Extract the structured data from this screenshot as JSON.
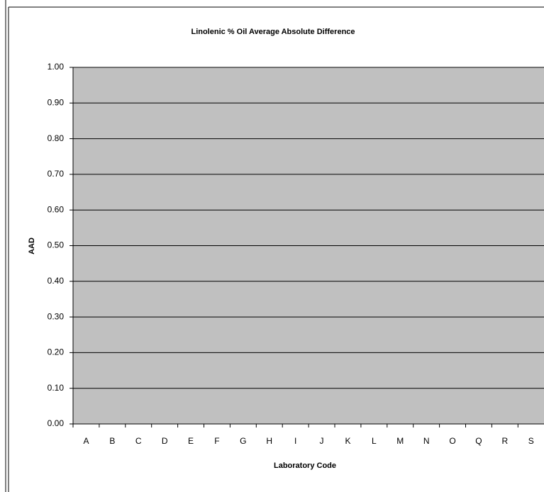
{
  "chart_data": {
    "type": "bar",
    "title": "Linolenic % Oil Average Absolute Difference",
    "x_label": "Laboratory Code",
    "y_label": "AAD",
    "categories": [
      "A",
      "B",
      "C",
      "D",
      "E",
      "F",
      "G",
      "H",
      "I",
      "J",
      "K",
      "L",
      "M",
      "N",
      "O",
      "Q",
      "R",
      "S"
    ],
    "values": [
      0,
      0,
      0,
      0,
      0,
      0,
      0,
      0,
      0,
      0,
      0,
      0,
      0,
      0,
      0,
      0,
      0,
      0
    ],
    "color": "#000080",
    "ylim": [
      0,
      1
    ],
    "yticks": [
      {
        "value": 0,
        "label": "0.00"
      },
      {
        "value": 0.1,
        "label": "0.10"
      },
      {
        "value": 0.2,
        "label": "0.20"
      },
      {
        "value": 0.3,
        "label": "0.30"
      },
      {
        "value": 0.4,
        "label": "0.40"
      },
      {
        "value": 0.5,
        "label": "0.50"
      },
      {
        "value": 0.6,
        "label": "0.60"
      },
      {
        "value": 0.7,
        "label": "0.70"
      },
      {
        "value": 0.8,
        "label": "0.80"
      },
      {
        "value": 0.9,
        "label": "0.90"
      },
      {
        "value": 1,
        "label": "1.00"
      }
    ],
    "grid": true,
    "plot_background": "#c0c0c0"
  }
}
